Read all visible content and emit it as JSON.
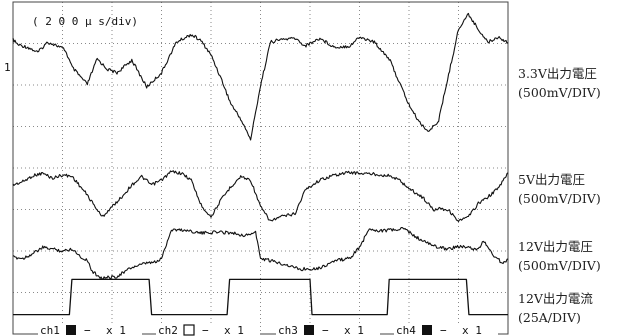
{
  "chart_data": {
    "type": "line",
    "title": "",
    "timebase": "( 2 0 0 μ s/div)",
    "grid": true,
    "divisions": {
      "x": 10,
      "y": 8
    },
    "x_unit": "μs",
    "xlim": [
      0,
      2000
    ],
    "series": [
      {
        "name": "3.3V出力電圧",
        "scale": "(500mV/DIV)",
        "unit": "mV",
        "ylim": [
          -500,
          500
        ],
        "x": [
          0,
          20,
          60,
          100,
          140,
          170,
          210,
          240,
          300,
          340,
          380,
          420,
          480,
          540,
          600,
          660,
          700,
          720,
          760,
          800,
          840,
          880,
          920,
          960,
          1000,
          1040,
          1080,
          1140,
          1180,
          1240,
          1300,
          1360,
          1400,
          1460,
          1520,
          1560,
          1600,
          1640,
          1680,
          1720,
          1800,
          1840,
          1880,
          1920,
          1960,
          2000
        ],
        "y": [
          300,
          260,
          240,
          200,
          280,
          260,
          220,
          80,
          -50,
          150,
          70,
          40,
          140,
          -70,
          40,
          280,
          320,
          340,
          290,
          180,
          0,
          -200,
          -320,
          -480,
          -60,
          280,
          300,
          310,
          250,
          310,
          240,
          250,
          320,
          280,
          150,
          -30,
          -210,
          -340,
          -420,
          -330,
          380,
          500,
          380,
          280,
          320,
          280
        ]
      },
      {
        "name": "5V出力電圧",
        "scale": "(500mV/DIV)",
        "unit": "mV",
        "ylim": [
          -500,
          500
        ],
        "x": [
          0,
          40,
          80,
          120,
          160,
          200,
          240,
          300,
          360,
          400,
          440,
          480,
          520,
          560,
          600,
          640,
          680,
          720,
          760,
          800,
          840,
          880,
          920,
          960,
          1000,
          1040,
          1080,
          1140,
          1180,
          1240,
          1300,
          1360,
          1400,
          1460,
          1520,
          1560,
          1600,
          1660,
          1700,
          1720,
          1760,
          1800,
          1840,
          1880,
          1920,
          1960,
          2000
        ],
        "y": [
          0,
          40,
          110,
          140,
          80,
          120,
          100,
          -120,
          -380,
          -260,
          -140,
          0,
          100,
          0,
          60,
          160,
          140,
          60,
          -240,
          -380,
          -180,
          -20,
          100,
          60,
          -260,
          -430,
          -380,
          -340,
          -60,
          60,
          120,
          150,
          140,
          130,
          110,
          60,
          -40,
          -160,
          -300,
          -270,
          -300,
          -430,
          -380,
          -220,
          -140,
          -40,
          140
        ]
      },
      {
        "name": "12V出力電圧",
        "scale": "(500mV/DIV)",
        "unit": "mV",
        "ylim": [
          -500,
          500
        ],
        "x": [
          0,
          40,
          80,
          120,
          160,
          200,
          240,
          280,
          300,
          320,
          360,
          420,
          480,
          540,
          580,
          600,
          640,
          700,
          760,
          820,
          880,
          940,
          980,
          1000,
          1040,
          1100,
          1160,
          1240,
          1300,
          1360,
          1400,
          1440,
          1480,
          1560,
          1580,
          1620,
          1660,
          1720,
          1760,
          1800,
          1840,
          1880,
          1900,
          1940,
          1980,
          2000
        ],
        "y": [
          -120,
          -140,
          -60,
          40,
          20,
          -20,
          20,
          -140,
          -160,
          -360,
          -470,
          -440,
          -290,
          -220,
          -200,
          -140,
          340,
          330,
          280,
          300,
          290,
          240,
          300,
          -140,
          -180,
          -240,
          -320,
          -300,
          -180,
          -140,
          40,
          360,
          320,
          340,
          360,
          240,
          140,
          40,
          20,
          60,
          40,
          0,
          160,
          -80,
          -230,
          -160
        ]
      },
      {
        "name": "12V出力電流",
        "scale": "(25A/DIV)",
        "unit": "A",
        "ylim": [
          -25,
          25
        ],
        "x": [
          0,
          228,
          238,
          550,
          560,
          865,
          875,
          1200,
          1208,
          1512,
          1520,
          1832,
          1842,
          2000
        ],
        "y": [
          -22,
          -22,
          22,
          22,
          -22,
          -22,
          22,
          22,
          -22,
          -22,
          22,
          22,
          -22,
          -22
        ]
      }
    ]
  },
  "channels": [
    {
      "name": "ch1",
      "marker": "filled",
      "coupling": "−",
      "probe": "x 1"
    },
    {
      "name": "ch2",
      "marker": "open",
      "coupling": "−",
      "probe": "x 1"
    },
    {
      "name": "ch3",
      "marker": "filled",
      "coupling": "−",
      "probe": "x 1"
    },
    {
      "name": "ch4",
      "marker": "filled",
      "coupling": "−",
      "probe": "x 1"
    }
  ],
  "left_marker": "1",
  "colors": {
    "trace": "#111111",
    "grid": "#8a8a8a",
    "frame": "#444444",
    "background": "#ffffff"
  }
}
